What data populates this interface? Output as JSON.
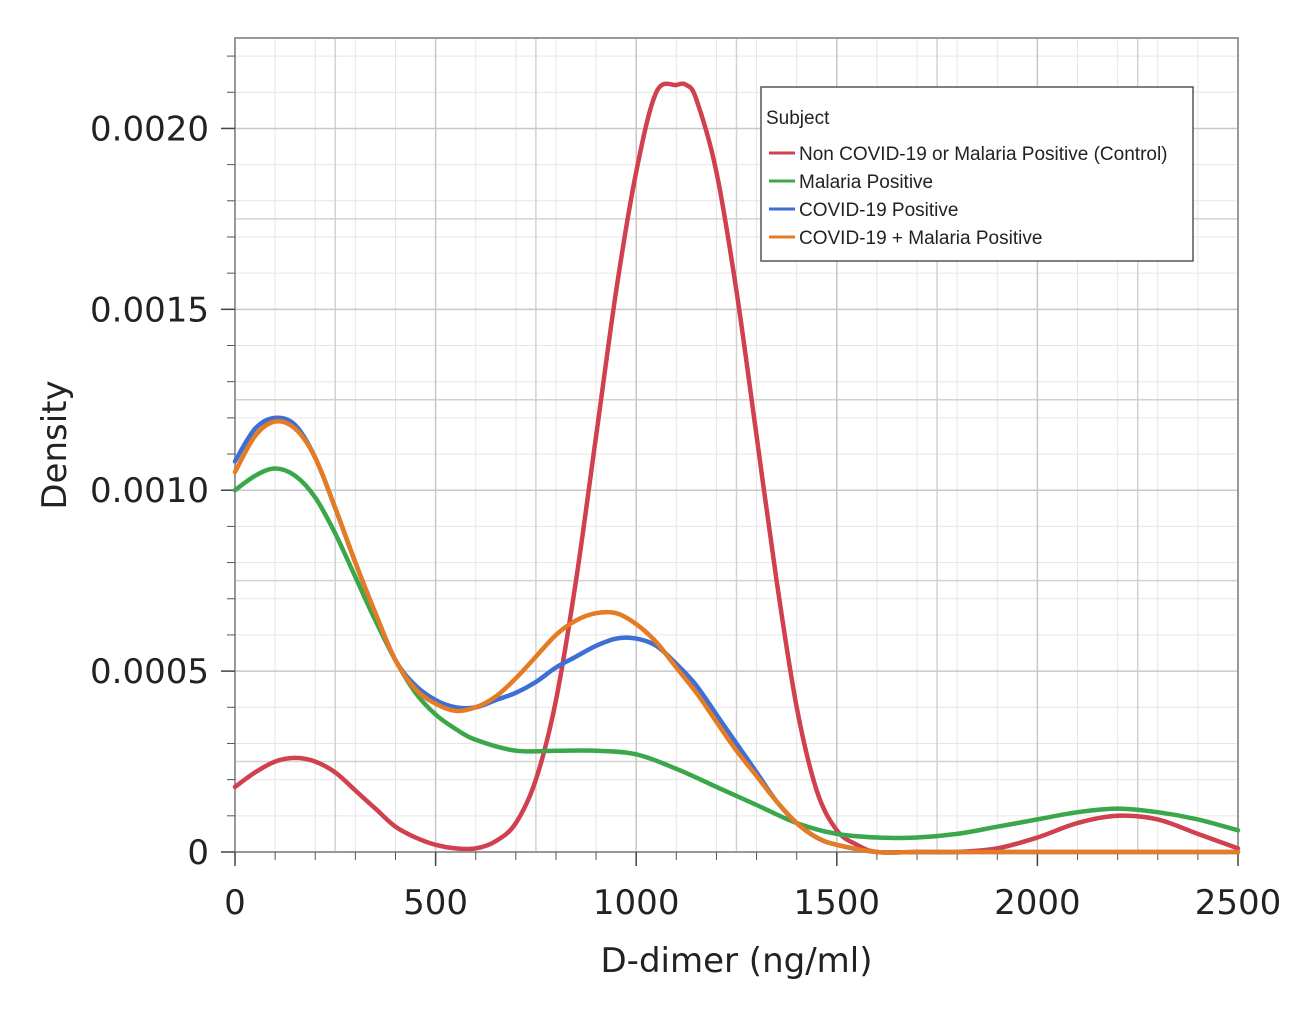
{
  "chart_data": {
    "type": "line",
    "xlabel": "D-dimer (ng/ml)",
    "ylabel": "Density",
    "xlim": [
      0,
      2500
    ],
    "ylim": [
      0,
      0.00225
    ],
    "x_ticks": [
      0,
      500,
      1000,
      1500,
      2000,
      2500
    ],
    "x_tick_labels": [
      "0",
      "500",
      "1000",
      "1500",
      "2000",
      "2500"
    ],
    "y_ticks": [
      0,
      0.0005,
      0.001,
      0.0015,
      0.002
    ],
    "y_tick_labels": [
      "0",
      "0.0005",
      "0.0010",
      "0.0015",
      "0.0020"
    ],
    "grid": true,
    "legend": {
      "title": "Subject",
      "placement": "top-right"
    },
    "series": [
      {
        "name": "Non COVID-19 or Malaria Positive (Control)",
        "color": "#d0404f",
        "x": [
          0,
          50,
          100,
          150,
          200,
          250,
          300,
          350,
          400,
          450,
          500,
          550,
          600,
          650,
          700,
          750,
          800,
          850,
          900,
          950,
          1000,
          1050,
          1100,
          1125,
          1150,
          1200,
          1250,
          1300,
          1350,
          1400,
          1450,
          1500,
          1550,
          1600,
          1700,
          1800,
          1900,
          2000,
          2100,
          2200,
          2300,
          2400,
          2500
        ],
        "y": [
          0.00018,
          0.00022,
          0.00025,
          0.00026,
          0.00025,
          0.00022,
          0.00017,
          0.00012,
          7e-05,
          4e-05,
          2e-05,
          1e-05,
          1e-05,
          3e-05,
          8e-05,
          0.0002,
          0.00042,
          0.00075,
          0.00115,
          0.00155,
          0.00188,
          0.0021,
          0.00212,
          0.00212,
          0.00208,
          0.00188,
          0.00155,
          0.00115,
          0.00075,
          0.0004,
          0.00017,
          6e-05,
          2e-05,
          0.0,
          0.0,
          0.0,
          1e-05,
          4e-05,
          8e-05,
          0.0001,
          9e-05,
          5e-05,
          1e-05
        ]
      },
      {
        "name": "Malaria Positive",
        "color": "#3aa84a",
        "x": [
          0,
          50,
          100,
          150,
          200,
          250,
          300,
          350,
          400,
          450,
          500,
          550,
          600,
          700,
          800,
          900,
          1000,
          1100,
          1200,
          1300,
          1400,
          1500,
          1600,
          1700,
          1800,
          1900,
          2000,
          2100,
          2200,
          2300,
          2400,
          2500
        ],
        "y": [
          0.001,
          0.00104,
          0.00106,
          0.00104,
          0.00098,
          0.00088,
          0.00076,
          0.00064,
          0.00053,
          0.00044,
          0.00038,
          0.00034,
          0.00031,
          0.00028,
          0.00028,
          0.00028,
          0.00027,
          0.00023,
          0.00018,
          0.00013,
          8e-05,
          5e-05,
          4e-05,
          4e-05,
          5e-05,
          7e-05,
          9e-05,
          0.00011,
          0.00012,
          0.00011,
          9e-05,
          6e-05
        ]
      },
      {
        "name": "COVID-19 Positive",
        "color": "#3d6fd6",
        "x": [
          0,
          50,
          100,
          150,
          200,
          250,
          300,
          350,
          400,
          450,
          500,
          550,
          600,
          650,
          700,
          750,
          800,
          850,
          900,
          950,
          1000,
          1050,
          1100,
          1150,
          1200,
          1250,
          1300,
          1350,
          1400,
          1450,
          1500,
          1600,
          1700,
          1800,
          1900,
          2000,
          2100,
          2200,
          2300,
          2400,
          2500
        ],
        "y": [
          0.00108,
          0.00117,
          0.0012,
          0.00118,
          0.00109,
          0.00095,
          0.0008,
          0.00066,
          0.00053,
          0.00046,
          0.00042,
          0.0004,
          0.0004,
          0.00042,
          0.00044,
          0.00047,
          0.00051,
          0.00054,
          0.00057,
          0.00059,
          0.00059,
          0.00057,
          0.00052,
          0.00046,
          0.00038,
          0.0003,
          0.00022,
          0.00014,
          8e-05,
          4e-05,
          2e-05,
          0.0,
          0.0,
          0.0,
          0.0,
          0.0,
          0.0,
          0.0,
          0.0,
          0.0,
          0.0
        ]
      },
      {
        "name": "COVID-19 + Malaria Positive",
        "color": "#e57b22",
        "x": [
          0,
          50,
          100,
          150,
          200,
          250,
          300,
          350,
          400,
          450,
          500,
          550,
          600,
          650,
          700,
          750,
          800,
          850,
          900,
          950,
          1000,
          1050,
          1100,
          1150,
          1200,
          1250,
          1300,
          1350,
          1400,
          1450,
          1500,
          1600,
          1700,
          1800,
          1900,
          2000,
          2100,
          2200,
          2300,
          2400,
          2500
        ],
        "y": [
          0.00105,
          0.00115,
          0.00119,
          0.00117,
          0.00109,
          0.00095,
          0.0008,
          0.00066,
          0.00053,
          0.00045,
          0.00041,
          0.00039,
          0.0004,
          0.00043,
          0.00048,
          0.00054,
          0.0006,
          0.00064,
          0.00066,
          0.00066,
          0.00063,
          0.00058,
          0.00051,
          0.00044,
          0.00036,
          0.00028,
          0.00021,
          0.00014,
          8e-05,
          4e-05,
          2e-05,
          0.0,
          0.0,
          0.0,
          0.0,
          0.0,
          0.0,
          0.0,
          0.0,
          0.0,
          0.0
        ]
      }
    ]
  }
}
